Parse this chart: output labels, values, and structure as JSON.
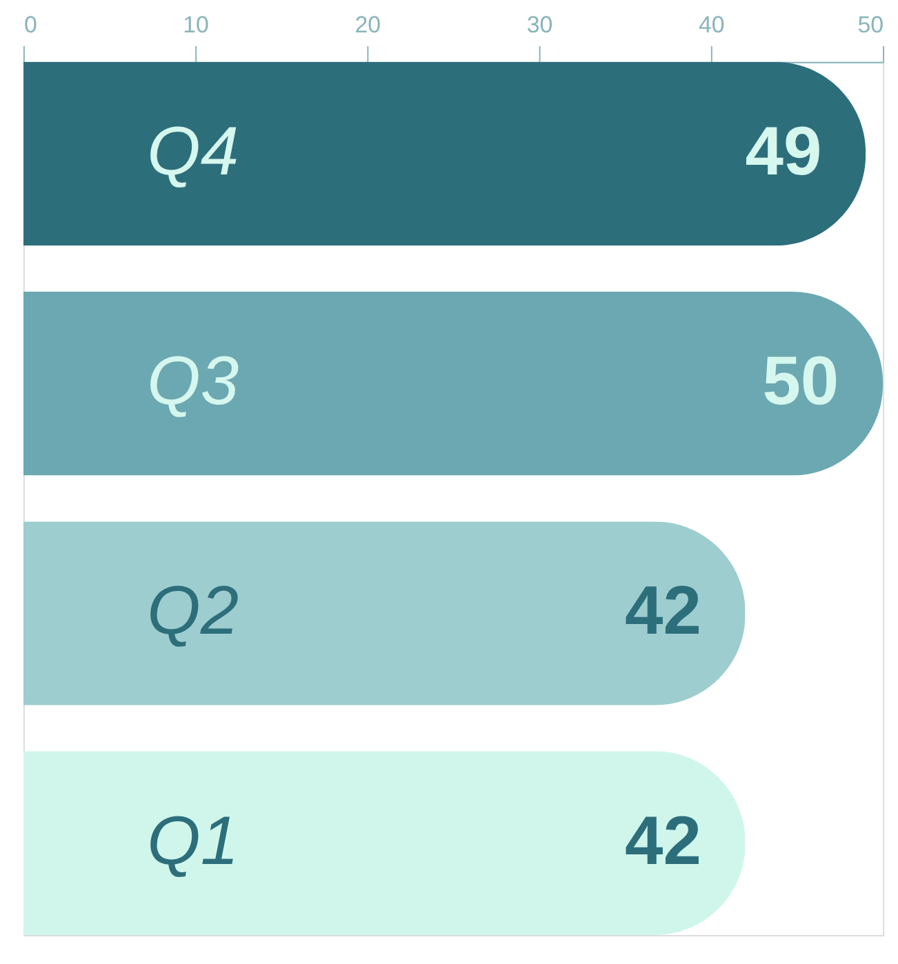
{
  "chart_data": {
    "type": "bar",
    "orientation": "horizontal",
    "categories": [
      "Q4",
      "Q3",
      "Q2",
      "Q1"
    ],
    "values": [
      49,
      50,
      42,
      42
    ],
    "colors": [
      "#2d6e7b",
      "#6ca8b2",
      "#9ecdcf",
      "#d0f6ec"
    ],
    "xlim": [
      0,
      50
    ],
    "xticks": [
      0,
      10,
      20,
      30,
      40,
      50
    ],
    "data_labels": true,
    "grid": false
  }
}
